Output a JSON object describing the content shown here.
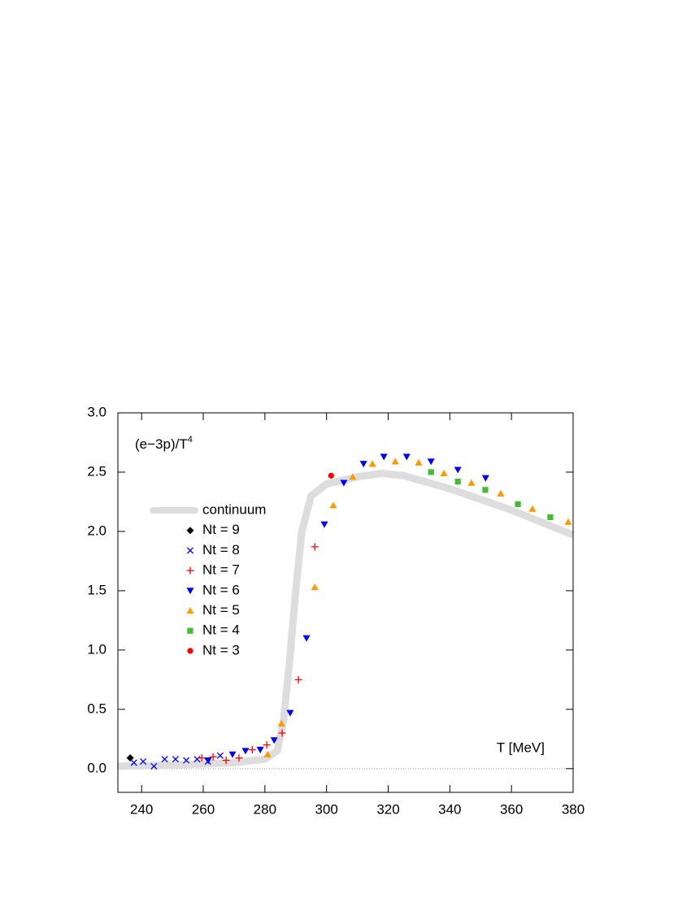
{
  "chart_data": {
    "type": "scatter",
    "y_label": "(e−3p)/T",
    "y_label_exponent": "4",
    "x_label": "T [MeV]",
    "xlim": [
      232.3,
      380
    ],
    "xticks": [
      240,
      260,
      280,
      300,
      320,
      340,
      360,
      380
    ],
    "ylim": [
      -0.2,
      3.0
    ],
    "yticks": [
      {
        "value": 0,
        "label": "0.0"
      },
      0.5,
      {
        "value": 1,
        "label": "1.0"
      },
      1.5,
      {
        "value": 2,
        "label": "2.0"
      },
      2.5,
      {
        "value": 3,
        "label": "3.0"
      }
    ],
    "zero_line": true,
    "legend": "left",
    "series": [
      {
        "name": "continuum",
        "kind": "line",
        "color": "#dddddd",
        "x": [
          232,
          250,
          270,
          280,
          284,
          286,
          288,
          290,
          292,
          295,
          300,
          310,
          318,
          325,
          340,
          360,
          380
        ],
        "values": [
          0.02,
          0.03,
          0.05,
          0.08,
          0.15,
          0.4,
          0.9,
          1.5,
          2.0,
          2.3,
          2.4,
          2.46,
          2.49,
          2.47,
          2.36,
          2.18,
          1.97
        ]
      },
      {
        "name": "Nt = 9",
        "marker": "diamond",
        "color": "#000000",
        "x": [
          236.3
        ],
        "values": [
          0.09
        ]
      },
      {
        "name": "Nt = 8",
        "marker": "x",
        "color": "#0000ff",
        "x": [
          237.5,
          240.5,
          244,
          247.5,
          251,
          254.5,
          258,
          261.5,
          265.5
        ],
        "values": [
          0.05,
          0.06,
          0.02,
          0.08,
          0.08,
          0.07,
          0.08,
          0.06,
          0.11
        ]
      },
      {
        "name": "Nt = 7",
        "marker": "plus",
        "color": "#ff0000",
        "x": [
          259.5,
          263.2,
          267.4,
          271.6,
          275.9,
          280.6,
          285.6,
          290.9,
          296.2
        ],
        "values": [
          0.09,
          0.1,
          0.07,
          0.09,
          0.16,
          0.2,
          0.3,
          0.75,
          1.87
        ]
      },
      {
        "name": "Nt = 6",
        "marker": "triangle-down",
        "color": "#0000ff",
        "x": [
          261.6,
          269.5,
          273.7,
          278.5,
          283,
          288.2,
          293.5,
          299.3,
          305.6,
          312,
          318.6,
          326,
          333.9,
          342.6,
          351.6
        ],
        "values": [
          0.07,
          0.12,
          0.15,
          0.16,
          0.24,
          0.47,
          1.1,
          2.06,
          2.41,
          2.57,
          2.63,
          2.63,
          2.59,
          2.52,
          2.45
        ]
      },
      {
        "name": "Nt = 5",
        "marker": "triangle",
        "color": "#ff9900",
        "x": [
          280.9,
          285.4,
          296.2,
          302.2,
          308.5,
          314.9,
          322.3,
          329.9,
          338.1,
          347,
          356.5,
          366.8,
          378.4
        ],
        "values": [
          0.12,
          0.38,
          1.53,
          2.22,
          2.46,
          2.57,
          2.59,
          2.58,
          2.49,
          2.41,
          2.32,
          2.19,
          2.08
        ]
      },
      {
        "name": "Nt = 4",
        "marker": "square",
        "color": "#44bb33",
        "x": [
          333.9,
          342.6,
          351.5,
          362.1,
          372.6
        ],
        "values": [
          2.5,
          2.42,
          2.35,
          2.23,
          2.12
        ]
      },
      {
        "name": "Nt = 3",
        "marker": "circle",
        "color": "#ff0000",
        "x": [
          301.5
        ],
        "values": [
          2.47
        ]
      }
    ]
  }
}
